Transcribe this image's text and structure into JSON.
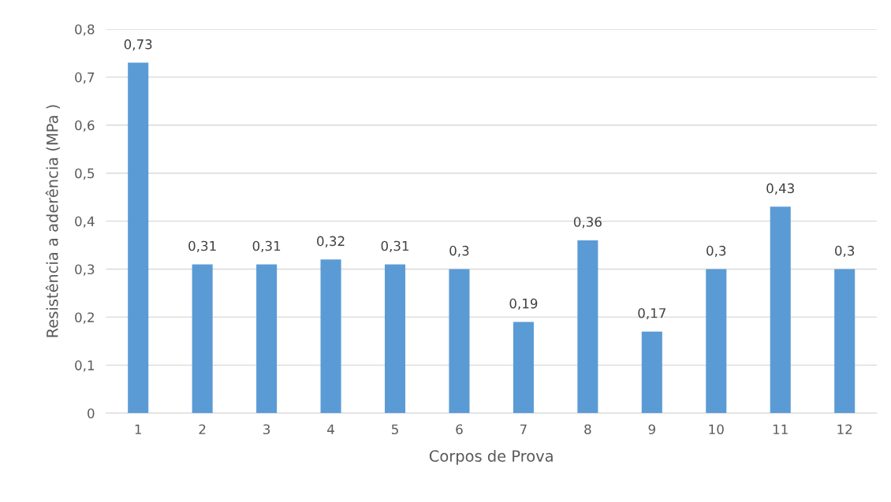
{
  "chart_data": {
    "type": "bar",
    "xlabel": "Corpos de Prova",
    "ylabel": "Resistência a aderência (MPa )",
    "categories": [
      "1",
      "2",
      "3",
      "4",
      "5",
      "6",
      "7",
      "8",
      "9",
      "10",
      "11",
      "12"
    ],
    "values": [
      0.73,
      0.31,
      0.31,
      0.32,
      0.31,
      0.3,
      0.19,
      0.36,
      0.17,
      0.3,
      0.43,
      0.3
    ],
    "value_labels": [
      "0,73",
      "0,31",
      "0,31",
      "0,32",
      "0,31",
      "0,3",
      "0,19",
      "0,36",
      "0,17",
      "0,3",
      "0,43",
      "0,3"
    ],
    "color": "#5b9bd5",
    "ylim": [
      0,
      0.8
    ],
    "yticks": [
      {
        "value": 0,
        "label": "0"
      },
      {
        "value": 0.1,
        "label": "0,1"
      },
      {
        "value": 0.2,
        "label": "0,2"
      },
      {
        "value": 0.3,
        "label": "0,3"
      },
      {
        "value": 0.4,
        "label": "0,4"
      },
      {
        "value": 0.5,
        "label": "0,5"
      },
      {
        "value": 0.6,
        "label": "0,6"
      },
      {
        "value": 0.7,
        "label": "0,7"
      },
      {
        "value": 0.8,
        "label": "0,8"
      }
    ],
    "grid": "y"
  }
}
